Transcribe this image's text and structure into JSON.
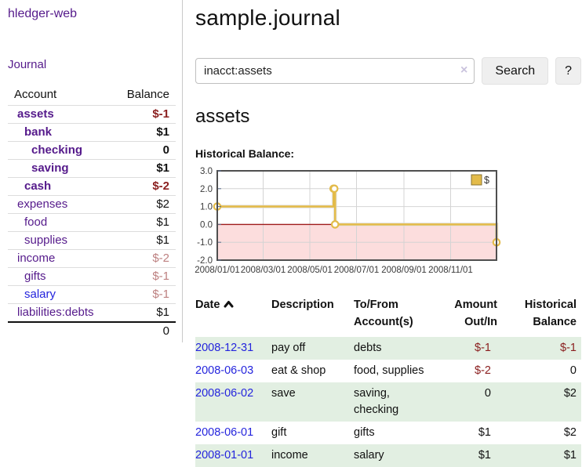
{
  "palette": {
    "brand_purple": "#551a8b",
    "link_blue": "#2424dd",
    "negative_red": "#8b2020",
    "negative_rosy": "#bd8080",
    "stripe_green": "#e2efe2",
    "chart_gold": "#e3bb4a",
    "chart_pink": "#fcdddd",
    "zero_line_red": "#9e1a1a",
    "chart_border": "#4f4f4f",
    "grid_gray": "#d4d4d4"
  },
  "sidebar": {
    "brand": "hledger-web",
    "nav_journal": "Journal",
    "columns": {
      "account": "Account",
      "balance": "Balance"
    },
    "accounts": [
      {
        "name": "assets",
        "level": 1,
        "bold": true,
        "balance": "$-1",
        "balance_tone": "red"
      },
      {
        "name": "bank",
        "level": 2,
        "bold": true,
        "balance": "$1",
        "balance_tone": "black"
      },
      {
        "name": "checking",
        "level": 3,
        "bold": true,
        "balance": "0",
        "balance_tone": "black"
      },
      {
        "name": "saving",
        "level": 3,
        "bold": true,
        "balance": "$1",
        "balance_tone": "black"
      },
      {
        "name": "cash",
        "level": 2,
        "bold": true,
        "balance": "$-2",
        "balance_tone": "red"
      },
      {
        "name": "expenses",
        "level": 1,
        "bold": false,
        "balance": "$2",
        "balance_tone": "black"
      },
      {
        "name": "food",
        "level": 2,
        "bold": false,
        "balance": "$1",
        "balance_tone": "black"
      },
      {
        "name": "supplies",
        "level": 2,
        "bold": false,
        "balance": "$1",
        "balance_tone": "black"
      },
      {
        "name": "income",
        "level": 1,
        "bold": false,
        "balance": "$-2",
        "balance_tone": "rosy"
      },
      {
        "name": "gifts",
        "level": 2,
        "bold": false,
        "balance": "$-1",
        "balance_tone": "rosy"
      },
      {
        "name": "salary",
        "level": 2,
        "bold": false,
        "balance": "$-1",
        "balance_tone": "rosy",
        "link_tone": "blue"
      },
      {
        "name": "liabilities:debts",
        "level": 1,
        "bold": false,
        "balance": "$1",
        "balance_tone": "black"
      }
    ],
    "total": "0"
  },
  "header": {
    "title": "sample.journal"
  },
  "search": {
    "value": "inacct:assets",
    "clear_label": "×",
    "button_label": "Search",
    "help_label": "?"
  },
  "account_page": {
    "heading": "assets",
    "chart_label": "Historical Balance:"
  },
  "chart_data": {
    "type": "line",
    "step": true,
    "title": "Historical Balance",
    "legend": [
      {
        "label": "$",
        "color": "#e3bb4a"
      }
    ],
    "legend_position": "top-right",
    "x": [
      "2008-01-01",
      "2008-06-01",
      "2008-06-02",
      "2008-06-03",
      "2008-12-31"
    ],
    "series": [
      {
        "name": "$",
        "values": [
          1,
          2,
          2,
          0,
          -1
        ]
      }
    ],
    "ylim": [
      -2.0,
      3.0
    ],
    "yticks": [
      "3.0",
      "2.0",
      "1.0",
      "0.0",
      "-1.0",
      "-2.0"
    ],
    "xticks": [
      "2008/01/01",
      "2008/03/01",
      "2008/05/01",
      "2008/07/01",
      "2008/09/01",
      "2008/11/01"
    ],
    "grid": true,
    "negative_region_shaded": true
  },
  "register": {
    "headers": [
      {
        "lines": [
          "Date"
        ],
        "sorted": "asc"
      },
      {
        "lines": [
          "Description"
        ]
      },
      {
        "lines": [
          "To/From",
          "Account(s)"
        ]
      },
      {
        "lines": [
          "Amount",
          "Out/In"
        ],
        "align": "right"
      },
      {
        "lines": [
          "Historical",
          "Balance"
        ],
        "align": "right"
      }
    ],
    "rows": [
      {
        "date": "2008-12-31",
        "description": "pay off",
        "accounts": "debts",
        "amount": "$-1",
        "balance": "$-1"
      },
      {
        "date": "2008-06-03",
        "description": "eat & shop",
        "accounts": "food, supplies",
        "amount": "$-2",
        "balance": "0"
      },
      {
        "date": "2008-06-02",
        "description": "save",
        "accounts": "saving, checking",
        "amount": "0",
        "balance": "$2"
      },
      {
        "date": "2008-06-01",
        "description": "gift",
        "accounts": "gifts",
        "amount": "$1",
        "balance": "$2"
      },
      {
        "date": "2008-01-01",
        "description": "income",
        "accounts": "salary",
        "amount": "$1",
        "balance": "$1"
      }
    ]
  }
}
